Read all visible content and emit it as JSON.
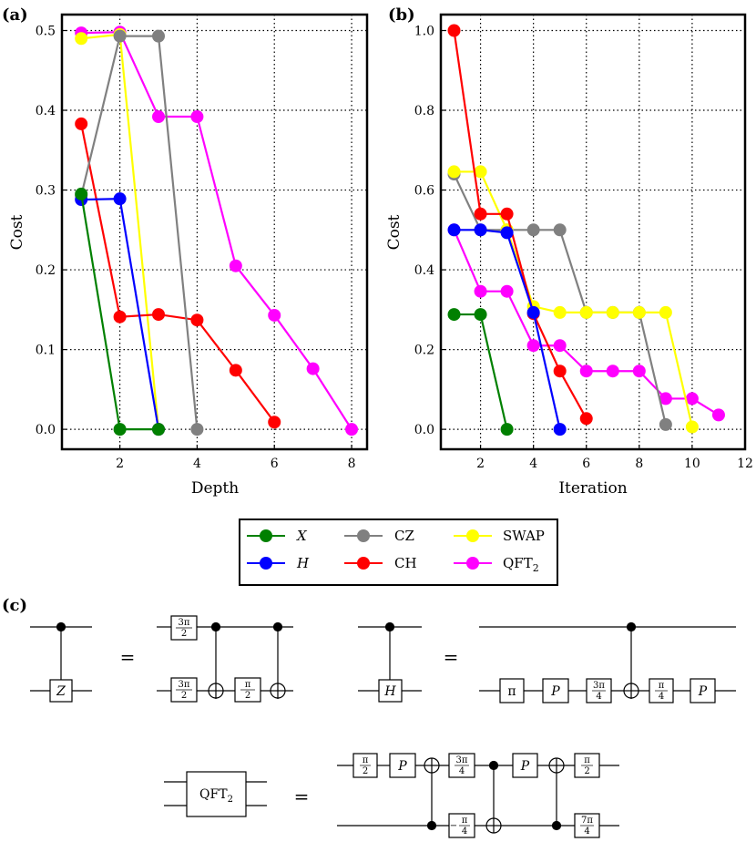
{
  "panel_labels": {
    "a": "(a)",
    "b": "(b)",
    "c": "(c)"
  },
  "colors": {
    "X": "#008000",
    "H": "#0000ff",
    "CZ": "#808080",
    "CH": "#ff0000",
    "SWAP": "#ffff00",
    "QFT2": "#ff00ff"
  },
  "legend": {
    "X": "X",
    "H": "H",
    "CZ": "CZ",
    "CH": "CH",
    "SWAP": "SWAP",
    "QFT": "QFT",
    "QFT_sub": "2"
  },
  "chart_data": [
    {
      "id": "a",
      "type": "line",
      "xlabel": "Depth",
      "ylabel": "Cost",
      "xlim": [
        0.5,
        8.4
      ],
      "ylim": [
        -0.025,
        0.52
      ],
      "xticks": [
        2,
        4,
        6,
        8
      ],
      "yticks": [
        0.0,
        0.1,
        0.2,
        0.3,
        0.4,
        0.5
      ],
      "ytick_labels": [
        "0.0",
        "0.1",
        "0.2",
        "0.3",
        "0.4",
        "0.5"
      ],
      "grid": true,
      "series": [
        {
          "name": "QFT2",
          "x": [
            1,
            2,
            3,
            4,
            5,
            6,
            7,
            8
          ],
          "values": [
            0.497,
            0.498,
            0.392,
            0.392,
            0.205,
            0.143,
            0.076,
            0.0
          ]
        },
        {
          "name": "SWAP",
          "x": [
            1,
            2,
            3
          ],
          "values": [
            0.49,
            0.495,
            0.0
          ]
        },
        {
          "name": "CH",
          "x": [
            1,
            2,
            3,
            4,
            5,
            6
          ],
          "values": [
            0.383,
            0.141,
            0.144,
            0.137,
            0.074,
            0.009
          ]
        },
        {
          "name": "CZ",
          "x": [
            1,
            2,
            3,
            4
          ],
          "values": [
            0.293,
            0.493,
            0.493,
            0.0
          ]
        },
        {
          "name": "H",
          "x": [
            1,
            2,
            3
          ],
          "values": [
            0.288,
            0.289,
            0.0
          ]
        },
        {
          "name": "X",
          "x": [
            1,
            2,
            3
          ],
          "values": [
            0.295,
            0.0,
            0.0
          ]
        }
      ]
    },
    {
      "id": "b",
      "type": "line",
      "xlabel": "Iteration",
      "ylabel": "Cost",
      "xlim": [
        0.5,
        12
      ],
      "ylim": [
        -0.05,
        1.04
      ],
      "xticks": [
        2,
        4,
        6,
        8,
        10,
        12
      ],
      "yticks": [
        0.0,
        0.2,
        0.4,
        0.6,
        0.8,
        1.0
      ],
      "ytick_labels": [
        "0.0",
        "0.2",
        "0.4",
        "0.6",
        "0.8",
        "1.0"
      ],
      "grid": true,
      "series": [
        {
          "name": "QFT2",
          "x": [
            1,
            2,
            3,
            4,
            5,
            6,
            7,
            8,
            9,
            10,
            11
          ],
          "values": [
            0.5,
            0.346,
            0.346,
            0.21,
            0.21,
            0.146,
            0.146,
            0.146,
            0.077,
            0.077,
            0.036
          ]
        },
        {
          "name": "CZ",
          "x": [
            1,
            2,
            3,
            4,
            5,
            6,
            7,
            8,
            9
          ],
          "values": [
            0.64,
            0.5,
            0.5,
            0.5,
            0.5,
            0.293,
            0.293,
            0.293,
            0.012
          ]
        },
        {
          "name": "SWAP",
          "x": [
            1,
            2,
            3,
            4,
            5,
            6,
            7,
            8,
            9,
            10
          ],
          "values": [
            0.646,
            0.646,
            0.5,
            0.308,
            0.293,
            0.293,
            0.293,
            0.293,
            0.293,
            0.006
          ]
        },
        {
          "name": "CH",
          "x": [
            1,
            2,
            3,
            4,
            5,
            6
          ],
          "values": [
            1.0,
            0.54,
            0.54,
            0.29,
            0.146,
            0.027
          ]
        },
        {
          "name": "H",
          "x": [
            1,
            2,
            3,
            4,
            5
          ],
          "values": [
            0.5,
            0.5,
            0.493,
            0.293,
            0.0
          ]
        },
        {
          "name": "X",
          "x": [
            1,
            2,
            3
          ],
          "values": [
            0.288,
            0.288,
            0.0
          ]
        }
      ]
    }
  ],
  "circuits": {
    "equals": "=",
    "gate_Z": "Z",
    "gate_H": "H",
    "gate_P": "P",
    "gate_pi": "π",
    "qft_label": "QFT",
    "qft_sub": "2",
    "frac_3pi": "3π",
    "frac_7pi": "7π",
    "frac_pi": "π",
    "den_2": "2",
    "den_4": "4",
    "neg_sign": "−"
  }
}
